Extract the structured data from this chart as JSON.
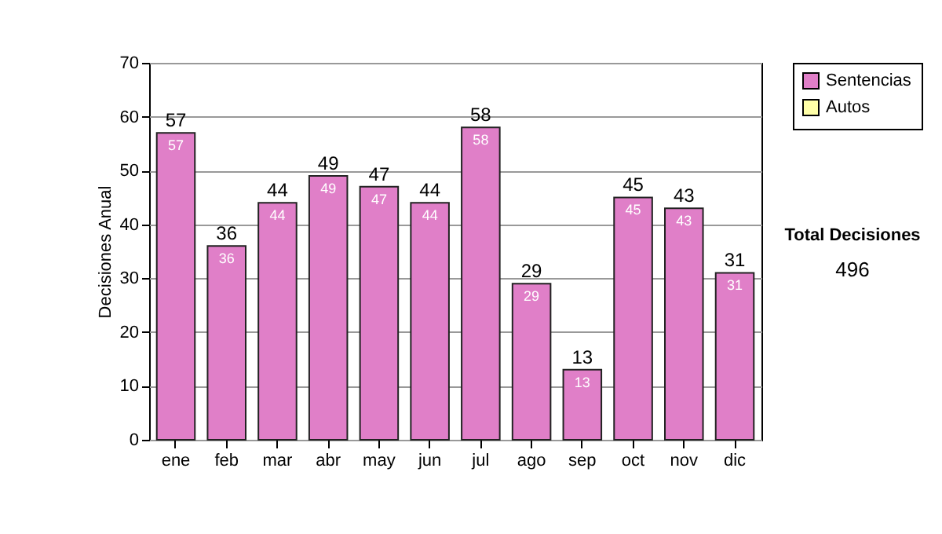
{
  "chart_data": {
    "type": "bar",
    "ylabel": "Decisiones Anual",
    "categories": [
      "ene",
      "feb",
      "mar",
      "abr",
      "may",
      "jun",
      "jul",
      "ago",
      "sep",
      "oct",
      "nov",
      "dic"
    ],
    "series": [
      {
        "name": "Sentencias",
        "color": "#e07fc8",
        "values": [
          57,
          36,
          44,
          49,
          47,
          44,
          58,
          29,
          13,
          45,
          43,
          31
        ]
      },
      {
        "name": "Autos",
        "color": "#ffffa8",
        "values": [
          null,
          null,
          null,
          null,
          null,
          null,
          null,
          null,
          null,
          null,
          null,
          null
        ]
      }
    ],
    "data_labels": true,
    "totals": [
      "57",
      "36",
      "44",
      "49",
      "47",
      "44",
      "58",
      "29",
      "13",
      "45",
      "43",
      "31"
    ],
    "ylim": [
      0,
      70
    ],
    "yticks": [
      0,
      10,
      20,
      30,
      40,
      50,
      60,
      70
    ],
    "grid": "y",
    "legend": "right",
    "annotations": [
      "Total Decisiones",
      "496"
    ]
  }
}
